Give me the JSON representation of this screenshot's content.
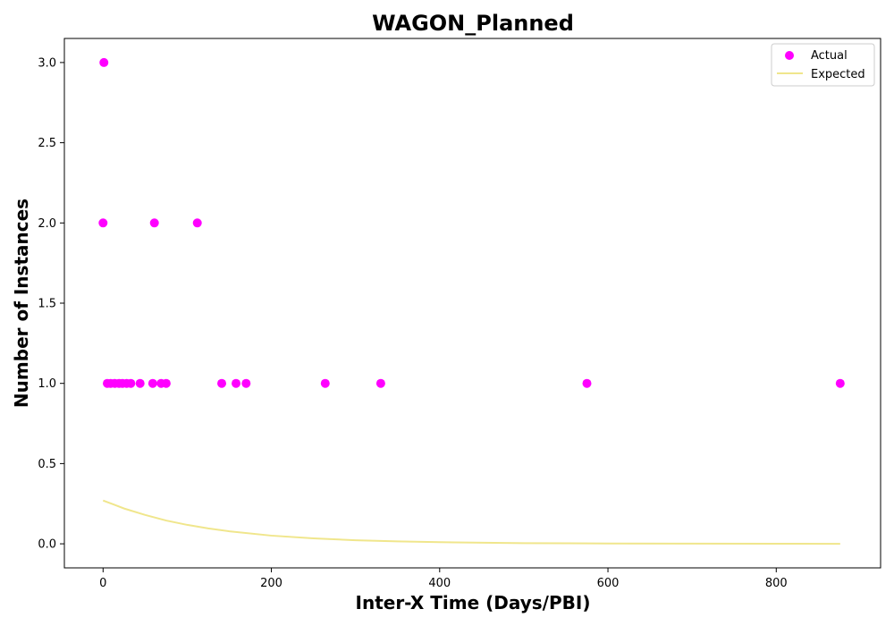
{
  "chart_data": {
    "type": "scatter",
    "title": "WAGON_Planned",
    "xlabel": "Inter-X Time (Days/PBI)",
    "ylabel": "Number of Instances",
    "xlim": [
      -46,
      924
    ],
    "ylim": [
      -0.15,
      3.15
    ],
    "xticks": [
      0,
      200,
      400,
      600,
      800
    ],
    "yticks": [
      0.0,
      0.5,
      1.0,
      1.5,
      2.0,
      2.5,
      3.0
    ],
    "xtick_labels": [
      "0",
      "200",
      "400",
      "600",
      "800"
    ],
    "ytick_labels": [
      "0.0",
      "0.5",
      "1.0",
      "1.5",
      "2.0",
      "2.5",
      "3.0"
    ],
    "grid": false,
    "legend_position": "top-right",
    "series": [
      {
        "name": "Actual",
        "kind": "scatter",
        "color": "#ff00ff",
        "x": [
          1,
          0,
          61,
          112,
          5,
          9,
          14,
          19,
          23,
          28,
          33,
          44,
          59,
          69,
          75,
          141,
          158,
          170,
          264,
          330,
          575,
          876
        ],
        "y": [
          3,
          2,
          2,
          2,
          1,
          1,
          1,
          1,
          1,
          1,
          1,
          1,
          1,
          1,
          1,
          1,
          1,
          1,
          1,
          1,
          1,
          1
        ]
      },
      {
        "name": "Expected",
        "kind": "line",
        "color": "#f0e68c",
        "x": [
          0,
          25,
          50,
          75,
          100,
          125,
          150,
          200,
          250,
          300,
          350,
          400,
          500,
          600,
          700,
          800,
          876
        ],
        "y": [
          0.27,
          0.22,
          0.18,
          0.145,
          0.118,
          0.096,
          0.078,
          0.051,
          0.034,
          0.022,
          0.015,
          0.01,
          0.004,
          0.002,
          0.001,
          0.0003,
          0.0001
        ]
      }
    ]
  }
}
